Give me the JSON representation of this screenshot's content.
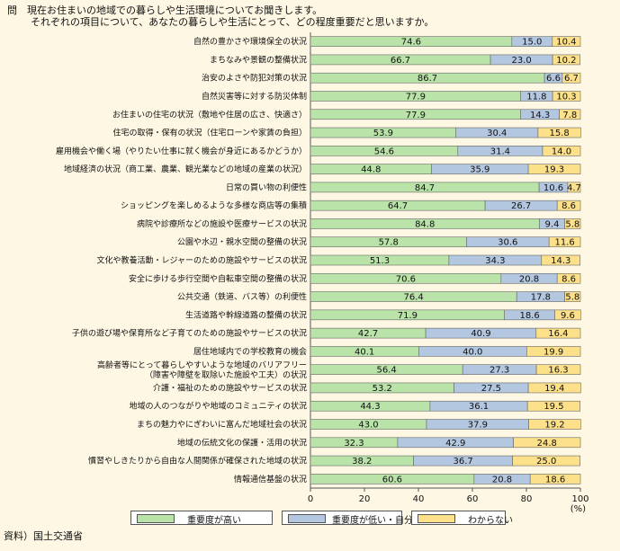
{
  "header": {
    "line1": "問　現在お住まいの地域での暮らしや生活環境についてお聞きします。",
    "line2": "それぞれの項目について、あなたの暮らしや生活にとって、どの程度重要だと思いますか。"
  },
  "source": "資料）国土交通省",
  "colors": {
    "high": "#b9e3a8",
    "low": "#b3c7e0",
    "unknown": "#fde08a",
    "background": "#fdf7e3"
  },
  "chart_data": {
    "type": "bar",
    "orientation": "horizontal",
    "stacked": true,
    "xlim": [
      0,
      100
    ],
    "xticks": [
      "0",
      "20",
      "40",
      "60",
      "80",
      "100"
    ],
    "xunit": "(%)",
    "legend_position": "bottom",
    "categories": [
      "自然の豊かさや環境保全の状況",
      "まちなみや景観の整備状況",
      "治安のよさや防犯対策の状況",
      "自然災害等に対する防災体制",
      "お住まいの住宅の状況（敷地や住居の広さ、快適さ）",
      "住宅の取得・保有の状況（住宅ローンや家賃の負担）",
      "雇用機会や働く場（やりたい仕事に就く機会が身近にあるかどうか）",
      "地域経済の状況（商工業、農業、観光業などの地域の産業の状況）",
      "日常の買い物の利便性",
      "ショッピングを楽しめるような多様な商店等の集積",
      "病院や診療所などの施設や医療サービスの状況",
      "公園や水辺・親水空間の整備の状況",
      "文化や教養活動・レジャーのための施設やサービスの状況",
      "安全に歩ける歩行空間や自転車空間の整備の状況",
      "公共交通（鉄道、バス等）の利便性",
      "生活道路や幹線道路の整備の状況",
      "子供の遊び場や保育所など子育てのための施設やサービスの状況",
      "居住地域内での学校教育の機会",
      [
        "高齢者等にとって暮らしやすいような地域のバリアフリー",
        "（障害や障壁を取除いた施設や工夫）の状況"
      ],
      "介護・福祉のための施設やサービスの状況",
      "地域の人のつながりや地域のコミュニティの状況",
      "まちの魅力やにぎわいに富んだ地域社会の状況",
      "地域の伝統文化の保護・活用の状況",
      "慣習やしきたりから自由な人間関係が確保された地域の状況",
      "情報通信基盤の状況"
    ],
    "series": [
      {
        "name": "重要度が高い",
        "values": [
          74.6,
          66.7,
          86.7,
          77.9,
          77.9,
          53.9,
          54.6,
          44.8,
          84.7,
          64.7,
          84.8,
          57.8,
          51.3,
          70.6,
          76.4,
          71.9,
          42.7,
          40.1,
          56.4,
          53.2,
          44.3,
          43.0,
          32.3,
          38.2,
          60.6
        ]
      },
      {
        "name": "重要度が低い・自分には関係ない",
        "values": [
          15.0,
          23.0,
          6.6,
          11.8,
          14.3,
          30.4,
          31.4,
          35.9,
          10.6,
          26.7,
          9.4,
          30.6,
          34.3,
          20.8,
          17.8,
          18.6,
          40.9,
          40.0,
          27.3,
          27.5,
          36.1,
          37.9,
          42.9,
          36.7,
          20.8
        ]
      },
      {
        "name": "わからない",
        "values": [
          10.4,
          10.2,
          6.7,
          10.3,
          7.8,
          15.8,
          14.0,
          19.3,
          4.7,
          8.6,
          5.8,
          11.6,
          14.3,
          8.6,
          5.8,
          9.6,
          16.4,
          19.9,
          16.3,
          19.4,
          19.5,
          19.2,
          24.8,
          25.0,
          18.6
        ]
      }
    ]
  }
}
